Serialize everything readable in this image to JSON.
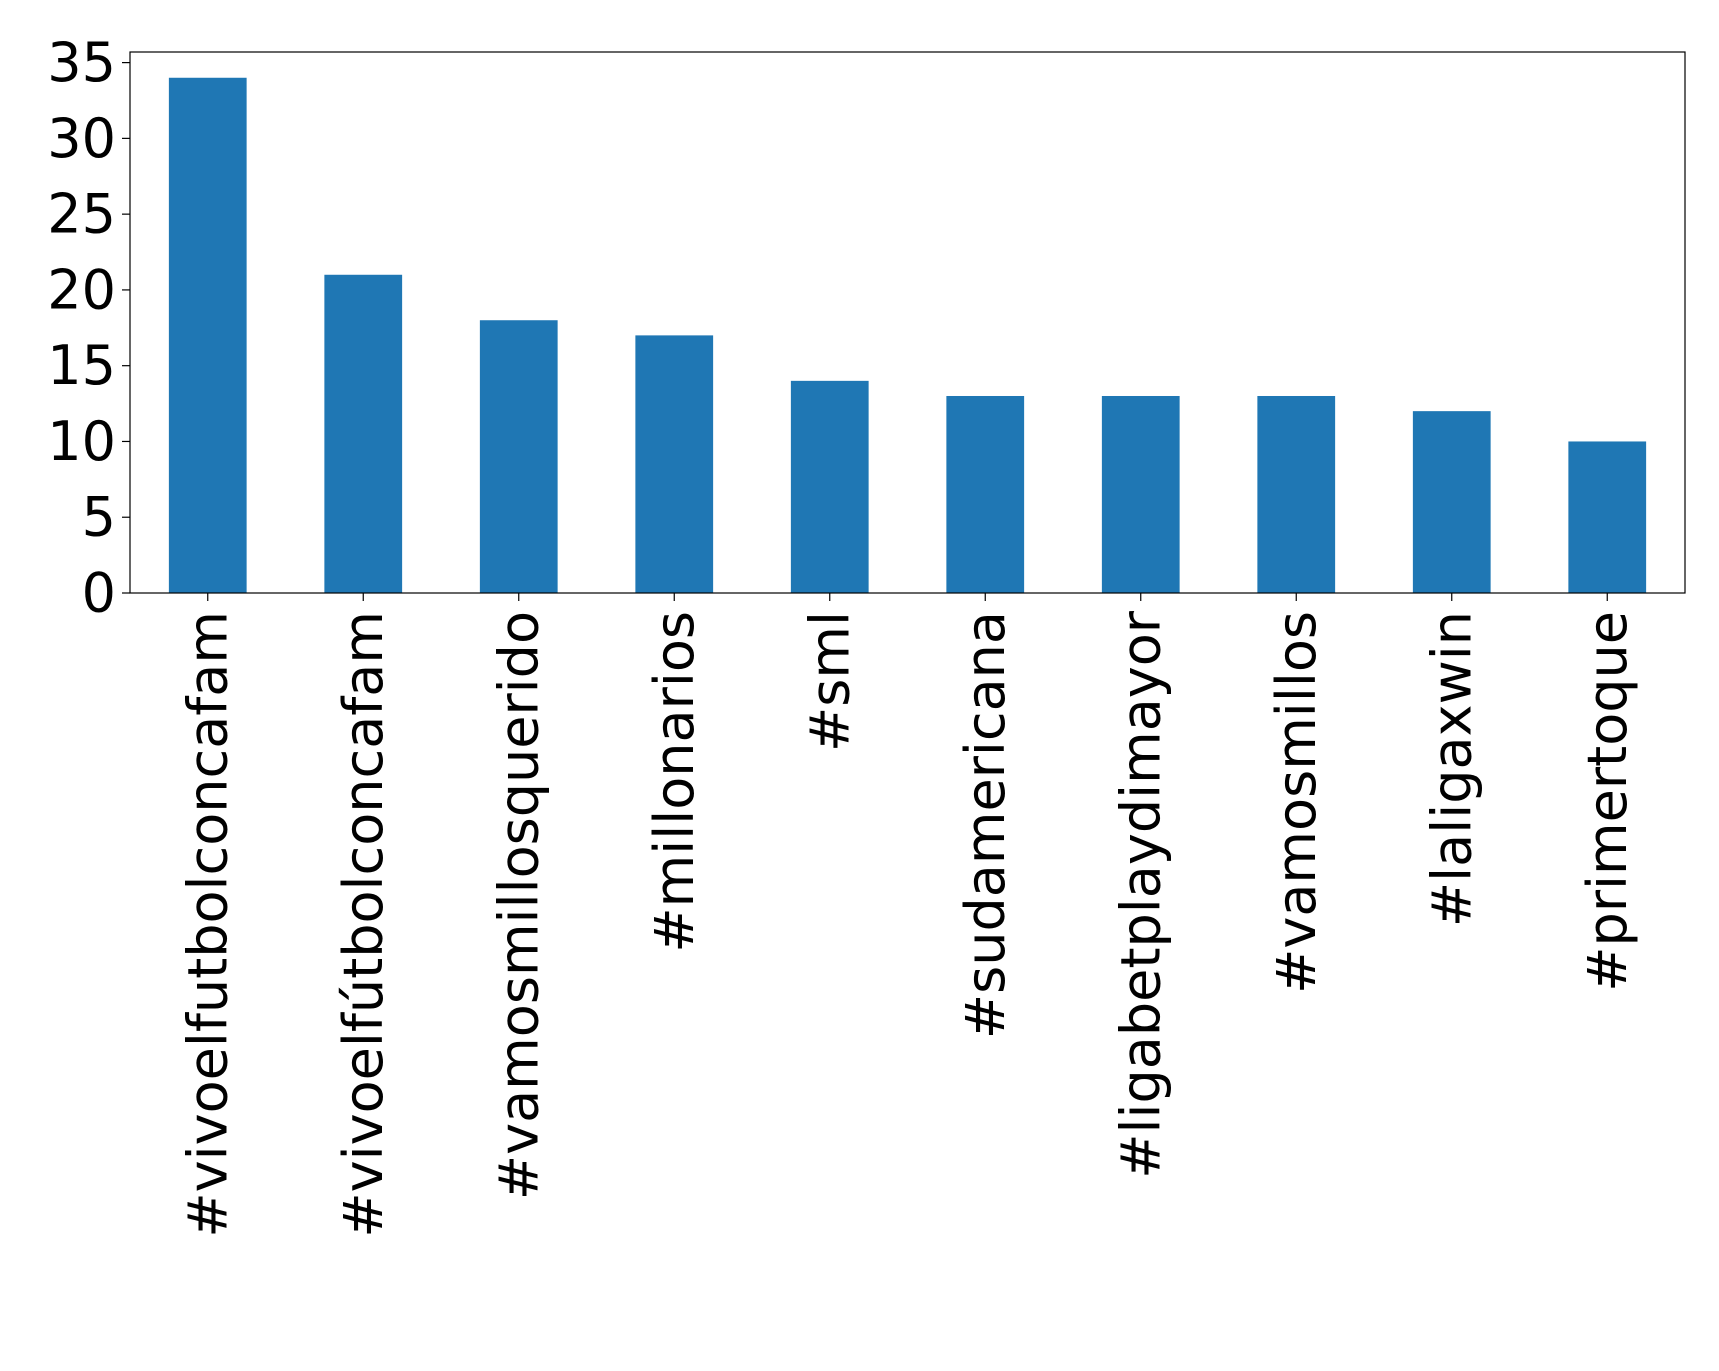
{
  "chart_data": {
    "type": "bar",
    "title": "",
    "xlabel": "",
    "ylabel": "",
    "categories": [
      "#vivoelfutbolconcafam",
      "#vivoelfútbolconcafam",
      "#vamosmillosquerido",
      "#millonarios",
      "#sml",
      "#sudamericana",
      "#ligabetplaydimayor",
      "#vamosmillos",
      "#laligaxwin",
      "#primertoque"
    ],
    "values": [
      34,
      21,
      18,
      17,
      14,
      13,
      13,
      13,
      12,
      10
    ],
    "ylim": [
      0,
      35.7
    ],
    "yticks": [
      0,
      5,
      10,
      15,
      20,
      25,
      30,
      35
    ],
    "grid": false,
    "legend": "none",
    "bar_color": "#1f77b4",
    "axis_color": "#000000"
  }
}
